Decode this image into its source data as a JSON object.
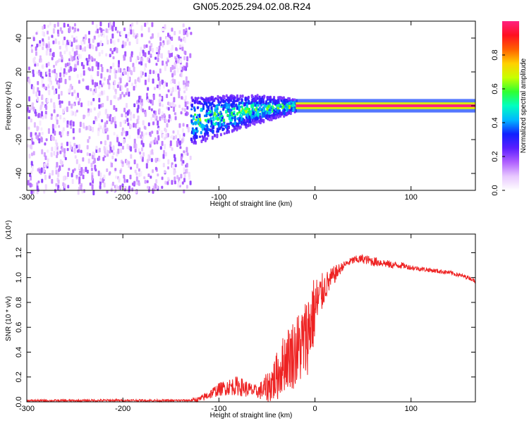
{
  "chart_data": [
    {
      "type": "heatmap",
      "title": "GN05.2025.294.02.08.R24",
      "xlabel": "Height of straight line (km)",
      "ylabel": "Frequency (Hz)",
      "xlim": [
        -300,
        167
      ],
      "ylim": [
        -50,
        50
      ],
      "x_ticks": [
        -300,
        -200,
        -100,
        0,
        100
      ],
      "x_tick_labels": [
        "-300",
        "-200",
        "-100",
        "0",
        "100"
      ],
      "y_ticks": [
        -40,
        -20,
        0,
        20,
        40
      ],
      "y_tick_labels": [
        "-40",
        "-20",
        "0",
        "20",
        "40"
      ],
      "colorbar": {
        "label": "Normalized spectral amplitude",
        "range": [
          0,
          1
        ],
        "ticks": [
          0,
          0.2,
          0.4,
          0.6,
          0.8
        ],
        "tick_labels": [
          "0.0",
          "0.2",
          "0.4",
          "0.6",
          "0.8"
        ],
        "colors": [
          "#ffffff",
          "#e8c8ff",
          "#b060ff",
          "#5a1eff",
          "#1020ff",
          "#00b8ff",
          "#00ffc0",
          "#30ff30",
          "#c8ff00",
          "#ffd000",
          "#ff6000",
          "#ff1020",
          "#ff2080"
        ]
      },
      "regions": [
        {
          "x_range": [
            -300,
            -130
          ],
          "y_range": [
            -50,
            50
          ],
          "amplitude": [
            0.02,
            0.2
          ],
          "description": "broadband noise"
        },
        {
          "x_range": [
            -130,
            -20
          ],
          "center_y": [
            [
              -130,
              -8
            ],
            [
              -100,
              -5
            ],
            [
              -60,
              -1
            ],
            [
              -20,
              1
            ]
          ],
          "half_width": [
            [
              -130,
              14
            ],
            [
              -80,
              10
            ],
            [
              -30,
              5
            ],
            [
              -20,
              3
            ]
          ],
          "amplitude": [
            0.2,
            0.55
          ]
        },
        {
          "x_range": [
            -20,
            167
          ],
          "center_y": 0,
          "half_width": 2,
          "amplitude": [
            0.9,
            1.0
          ],
          "description": "carrier line"
        }
      ]
    },
    {
      "type": "line",
      "xlabel": "Height of straight line (km)",
      "ylabel": "SNR (10 * v/v)",
      "y_multiplier": "(x10⁴)",
      "xlim": [
        -300,
        167
      ],
      "ylim": [
        0,
        1.35
      ],
      "x_ticks": [
        -300,
        -200,
        -100,
        0,
        100
      ],
      "x_tick_labels": [
        "-300",
        "-200",
        "-100",
        "0",
        "100"
      ],
      "y_ticks": [
        0,
        0.2,
        0.4,
        0.6,
        0.8,
        1.0,
        1.2
      ],
      "y_tick_labels": [
        "0.0",
        "0.2",
        "0.4",
        "0.6",
        "0.8",
        "1.0",
        "1.2"
      ],
      "color": "#ee2222",
      "x": [
        -300,
        -250,
        -200,
        -150,
        -130,
        -120,
        -110,
        -100,
        -90,
        -80,
        -70,
        -60,
        -50,
        -40,
        -30,
        -20,
        -10,
        0,
        10,
        20,
        30,
        40,
        50,
        60,
        70,
        80,
        90,
        100,
        120,
        140,
        160,
        167
      ],
      "y": [
        0.01,
        0.01,
        0.012,
        0.01,
        0.012,
        0.02,
        0.06,
        0.1,
        0.12,
        0.13,
        0.1,
        0.08,
        0.11,
        0.2,
        0.35,
        0.4,
        0.5,
        0.75,
        0.92,
        1.02,
        1.1,
        1.14,
        1.15,
        1.13,
        1.12,
        1.1,
        1.1,
        1.08,
        1.06,
        1.04,
        1.0,
        0.97
      ],
      "noise_envelope": [
        [
          -300,
          0.008
        ],
        [
          -130,
          0.01
        ],
        [
          -110,
          0.04
        ],
        [
          -80,
          0.08
        ],
        [
          -60,
          0.05
        ],
        [
          -40,
          0.2
        ],
        [
          -20,
          0.3
        ],
        [
          -5,
          0.35
        ],
        [
          10,
          0.12
        ],
        [
          30,
          0.03
        ],
        [
          60,
          0.04
        ],
        [
          100,
          0.02
        ],
        [
          167,
          0.015
        ]
      ]
    }
  ]
}
